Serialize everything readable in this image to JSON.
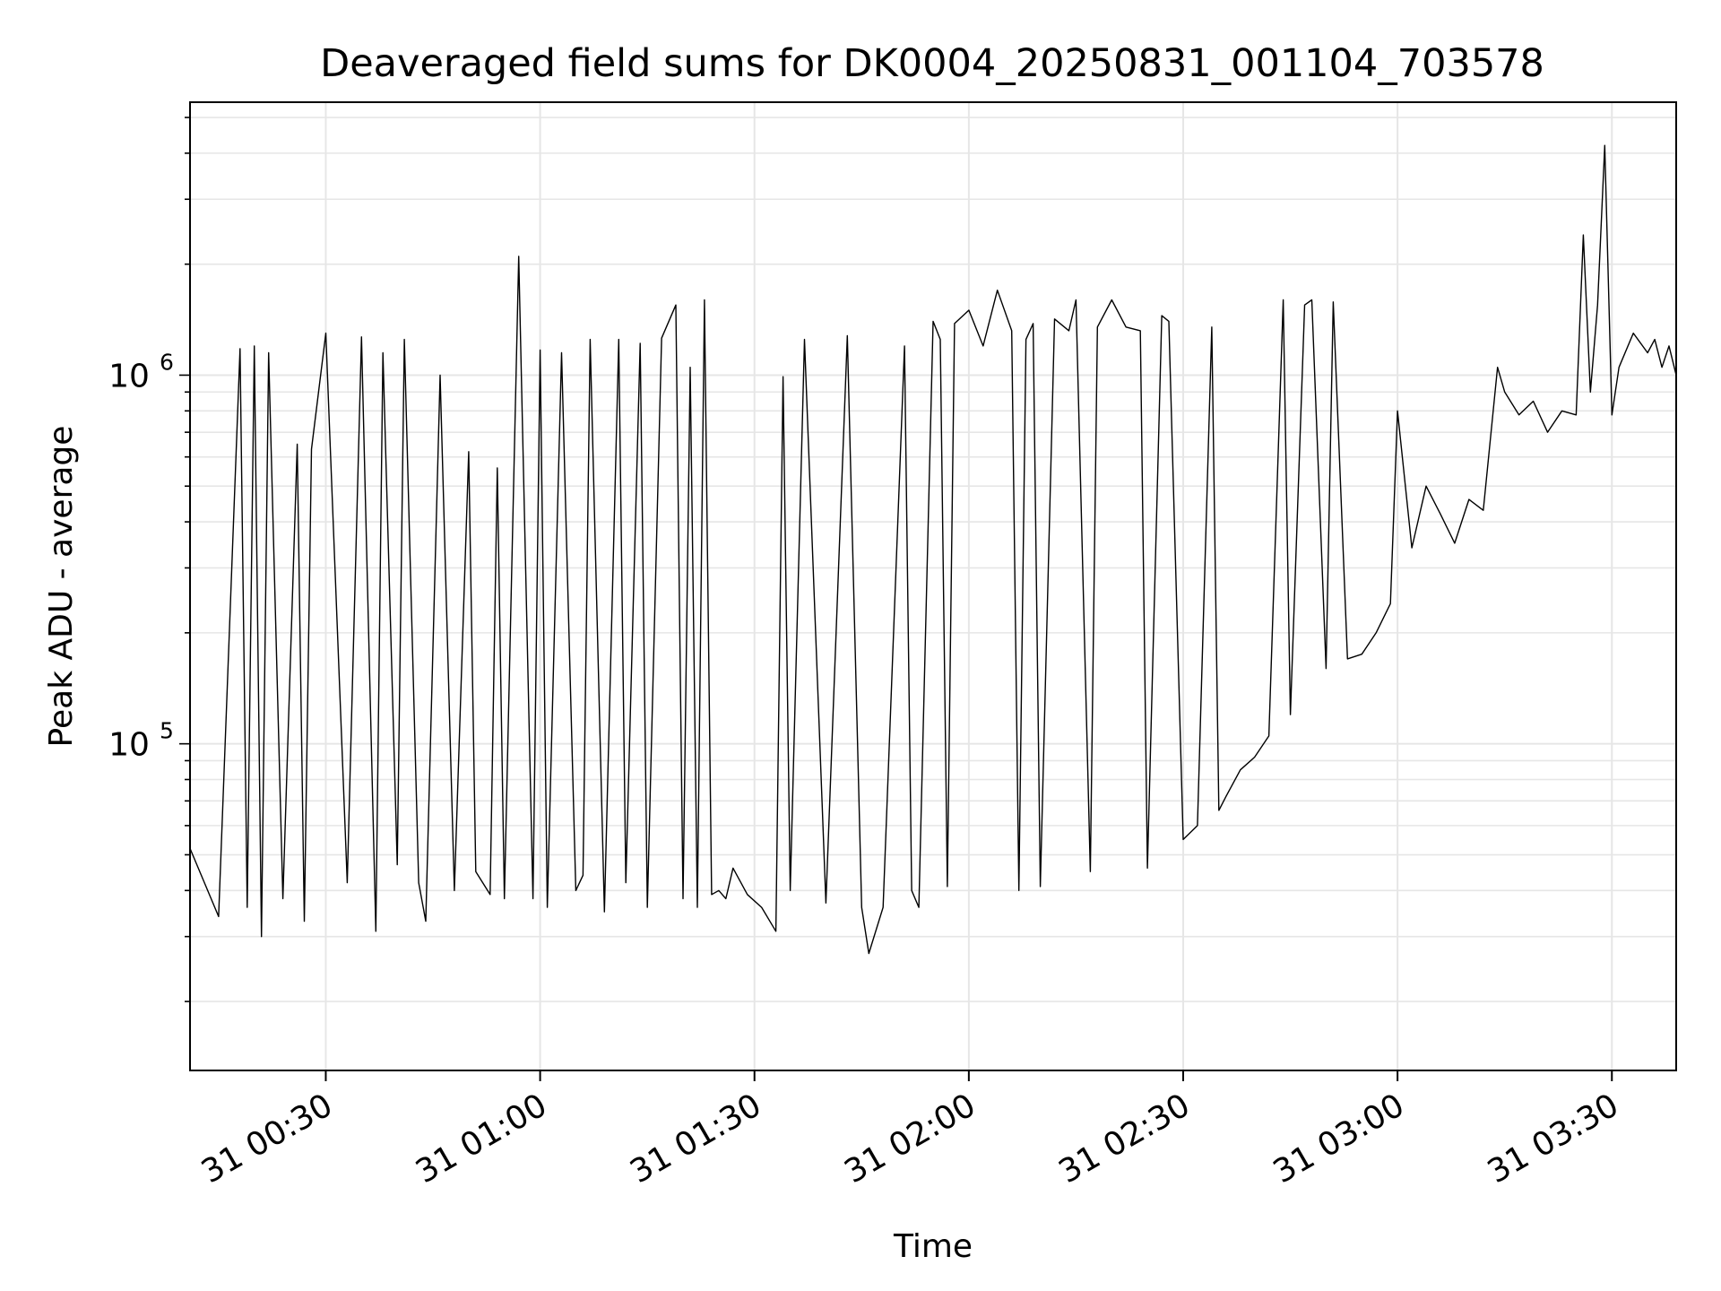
{
  "chart_data": {
    "type": "line",
    "title": "Deaveraged field sums for DK0004_20250831_001104_703578",
    "xlabel": "Time",
    "ylabel": "Peak ADU - average",
    "y_scale": "log",
    "grid": true,
    "line_color": "#000000",
    "grid_color": "#e6e6e6",
    "x_range": [
      "2025-08-31 00:11",
      "2025-08-31 03:39"
    ],
    "ylim": [
      13000,
      5500000
    ],
    "x_ticks": [
      "31 00:30",
      "31 01:00",
      "31 01:30",
      "31 02:00",
      "31 02:30",
      "31 03:00",
      "31 03:30"
    ],
    "y_ticks": [
      {
        "value": 100000,
        "base": "10",
        "exp": "5"
      },
      {
        "value": 1000000,
        "base": "10",
        "exp": "6"
      }
    ],
    "series": [
      {
        "x": [
          "00:11",
          "00:15",
          "00:18",
          "00:19",
          "00:20",
          "00:21",
          "00:22",
          "00:24",
          "00:26",
          "00:27",
          "00:28",
          "00:30",
          "00:33",
          "00:35",
          "00:37",
          "00:38",
          "00:40",
          "00:41",
          "00:43",
          "00:44",
          "00:46",
          "00:48",
          "00:50",
          "00:51",
          "00:53",
          "00:54",
          "00:55",
          "00:57",
          "00:59",
          "01:00",
          "01:01",
          "01:03",
          "01:05",
          "01:06",
          "01:07",
          "01:09",
          "01:11",
          "01:12",
          "01:14",
          "01:15",
          "01:17",
          "01:19",
          "01:20",
          "01:21",
          "01:22",
          "01:23",
          "01:24",
          "01:25",
          "01:26",
          "01:27",
          "01:29",
          "01:31",
          "01:33",
          "01:34",
          "01:35",
          "01:37",
          "01:40",
          "01:43",
          "01:45",
          "01:46",
          "01:48",
          "01:51",
          "01:52",
          "01:53",
          "01:55",
          "01:56",
          "01:57",
          "01:58",
          "02:00",
          "02:02",
          "02:04",
          "02:06",
          "02:07",
          "02:08",
          "02:09",
          "02:10",
          "02:12",
          "02:14",
          "02:15",
          "02:17",
          "02:18",
          "02:20",
          "02:22",
          "02:24",
          "02:25",
          "02:27",
          "02:28",
          "02:30",
          "02:32",
          "02:34",
          "02:35",
          "02:36",
          "02:38",
          "02:40",
          "02:42",
          "02:44",
          "02:45",
          "02:47",
          "02:48",
          "02:50",
          "02:51",
          "02:53",
          "02:55",
          "02:57",
          "02:59",
          "03:00",
          "03:02",
          "03:04",
          "03:06",
          "03:08",
          "03:10",
          "03:12",
          "03:14",
          "03:15",
          "03:17",
          "03:19",
          "03:21",
          "03:23",
          "03:25",
          "03:26",
          "03:27",
          "03:28",
          "03:29",
          "03:30",
          "03:31",
          "03:33",
          "03:35",
          "03:36",
          "03:37",
          "03:38",
          "03:39"
        ],
        "y": [
          52000,
          34000,
          1180000,
          36000,
          1200000,
          30000,
          1150000,
          38000,
          650000,
          33000,
          630000,
          1300000,
          42000,
          1270000,
          31000,
          1150000,
          47000,
          1250000,
          42000,
          33000,
          1000000,
          40000,
          620000,
          45000,
          39000,
          560000,
          38000,
          2100000,
          38000,
          1170000,
          36000,
          1150000,
          40000,
          44000,
          1250000,
          35000,
          1250000,
          42000,
          1220000,
          36000,
          1260000,
          1550000,
          38000,
          1050000,
          36000,
          1600000,
          39000,
          40000,
          38000,
          46000,
          39000,
          36000,
          31000,
          990000,
          40000,
          1250000,
          37000,
          1280000,
          36000,
          27000,
          36000,
          1200000,
          40000,
          36000,
          1400000,
          1250000,
          41000,
          1380000,
          1500000,
          1200000,
          1700000,
          1320000,
          40000,
          1250000,
          1380000,
          41000,
          1420000,
          1320000,
          1600000,
          45000,
          1350000,
          1600000,
          1350000,
          1320000,
          46000,
          1450000,
          1400000,
          55000,
          60000,
          1350000,
          66000,
          72000,
          85000,
          92000,
          105000,
          1600000,
          120000,
          1550000,
          1600000,
          160000,
          1580000,
          170000,
          175000,
          200000,
          240000,
          800000,
          340000,
          500000,
          420000,
          350000,
          460000,
          430000,
          1050000,
          900000,
          780000,
          850000,
          700000,
          800000,
          780000,
          2400000,
          900000,
          1550000,
          4200000,
          780000,
          1050000,
          1300000,
          1150000,
          1250000,
          1050000,
          1200000,
          1000000
        ]
      }
    ]
  }
}
